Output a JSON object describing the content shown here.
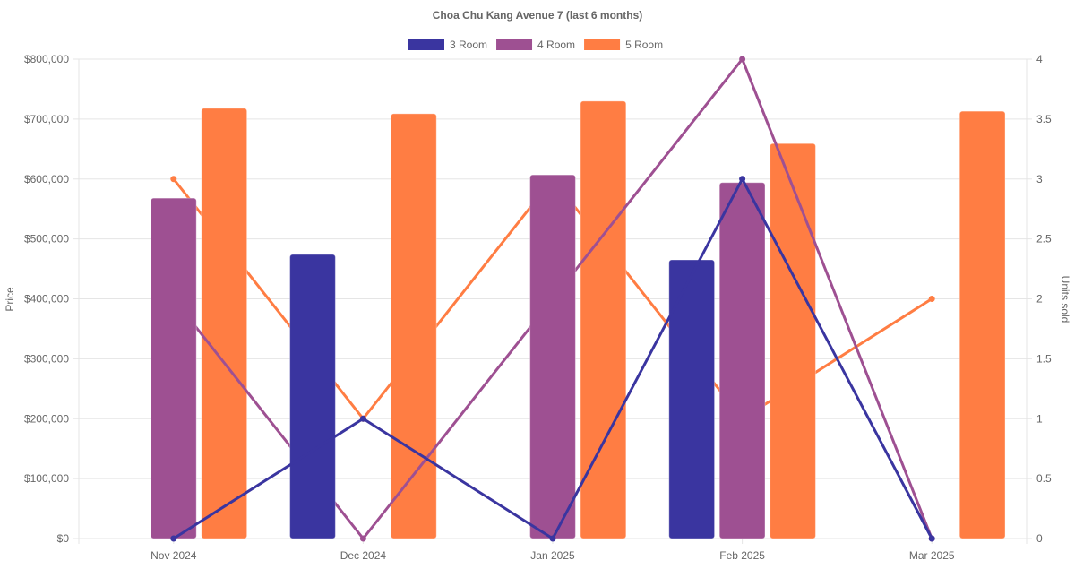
{
  "chart_data": {
    "type": "bar",
    "title": "Choa Chu Kang Avenue 7 (last 6 months)",
    "categories": [
      "Nov 2024",
      "Dec 2024",
      "Jan 2025",
      "Feb 2025",
      "Mar 2025"
    ],
    "ylabel": "Price",
    "y2label": "Units sold",
    "ylim": [
      0,
      800000
    ],
    "y2lim": [
      0,
      4
    ],
    "yticks": [
      "$0",
      "$100,000",
      "$200,000",
      "$300,000",
      "$400,000",
      "$500,000",
      "$600,000",
      "$700,000",
      "$800,000"
    ],
    "y2ticks": [
      "0",
      "0.5",
      "1",
      "1.5",
      "2",
      "2.5",
      "3",
      "3.5",
      "4"
    ],
    "legend_position": "top",
    "grid": true,
    "series": [
      {
        "name": "3 Room",
        "color": "#3a35a0",
        "price": [
          null,
          474000,
          null,
          465000,
          null
        ],
        "units": [
          0,
          1,
          0,
          3,
          0
        ]
      },
      {
        "name": "4 Room",
        "color": "#9e5092",
        "price": [
          568000,
          null,
          607000,
          594000,
          null
        ],
        "units": [
          2,
          0,
          2,
          4,
          0
        ]
      },
      {
        "name": "5 Room",
        "color": "#ff7d43",
        "price": [
          718000,
          709000,
          730000,
          659000,
          713000
        ],
        "units": [
          3,
          1,
          3,
          1,
          2
        ]
      }
    ]
  }
}
